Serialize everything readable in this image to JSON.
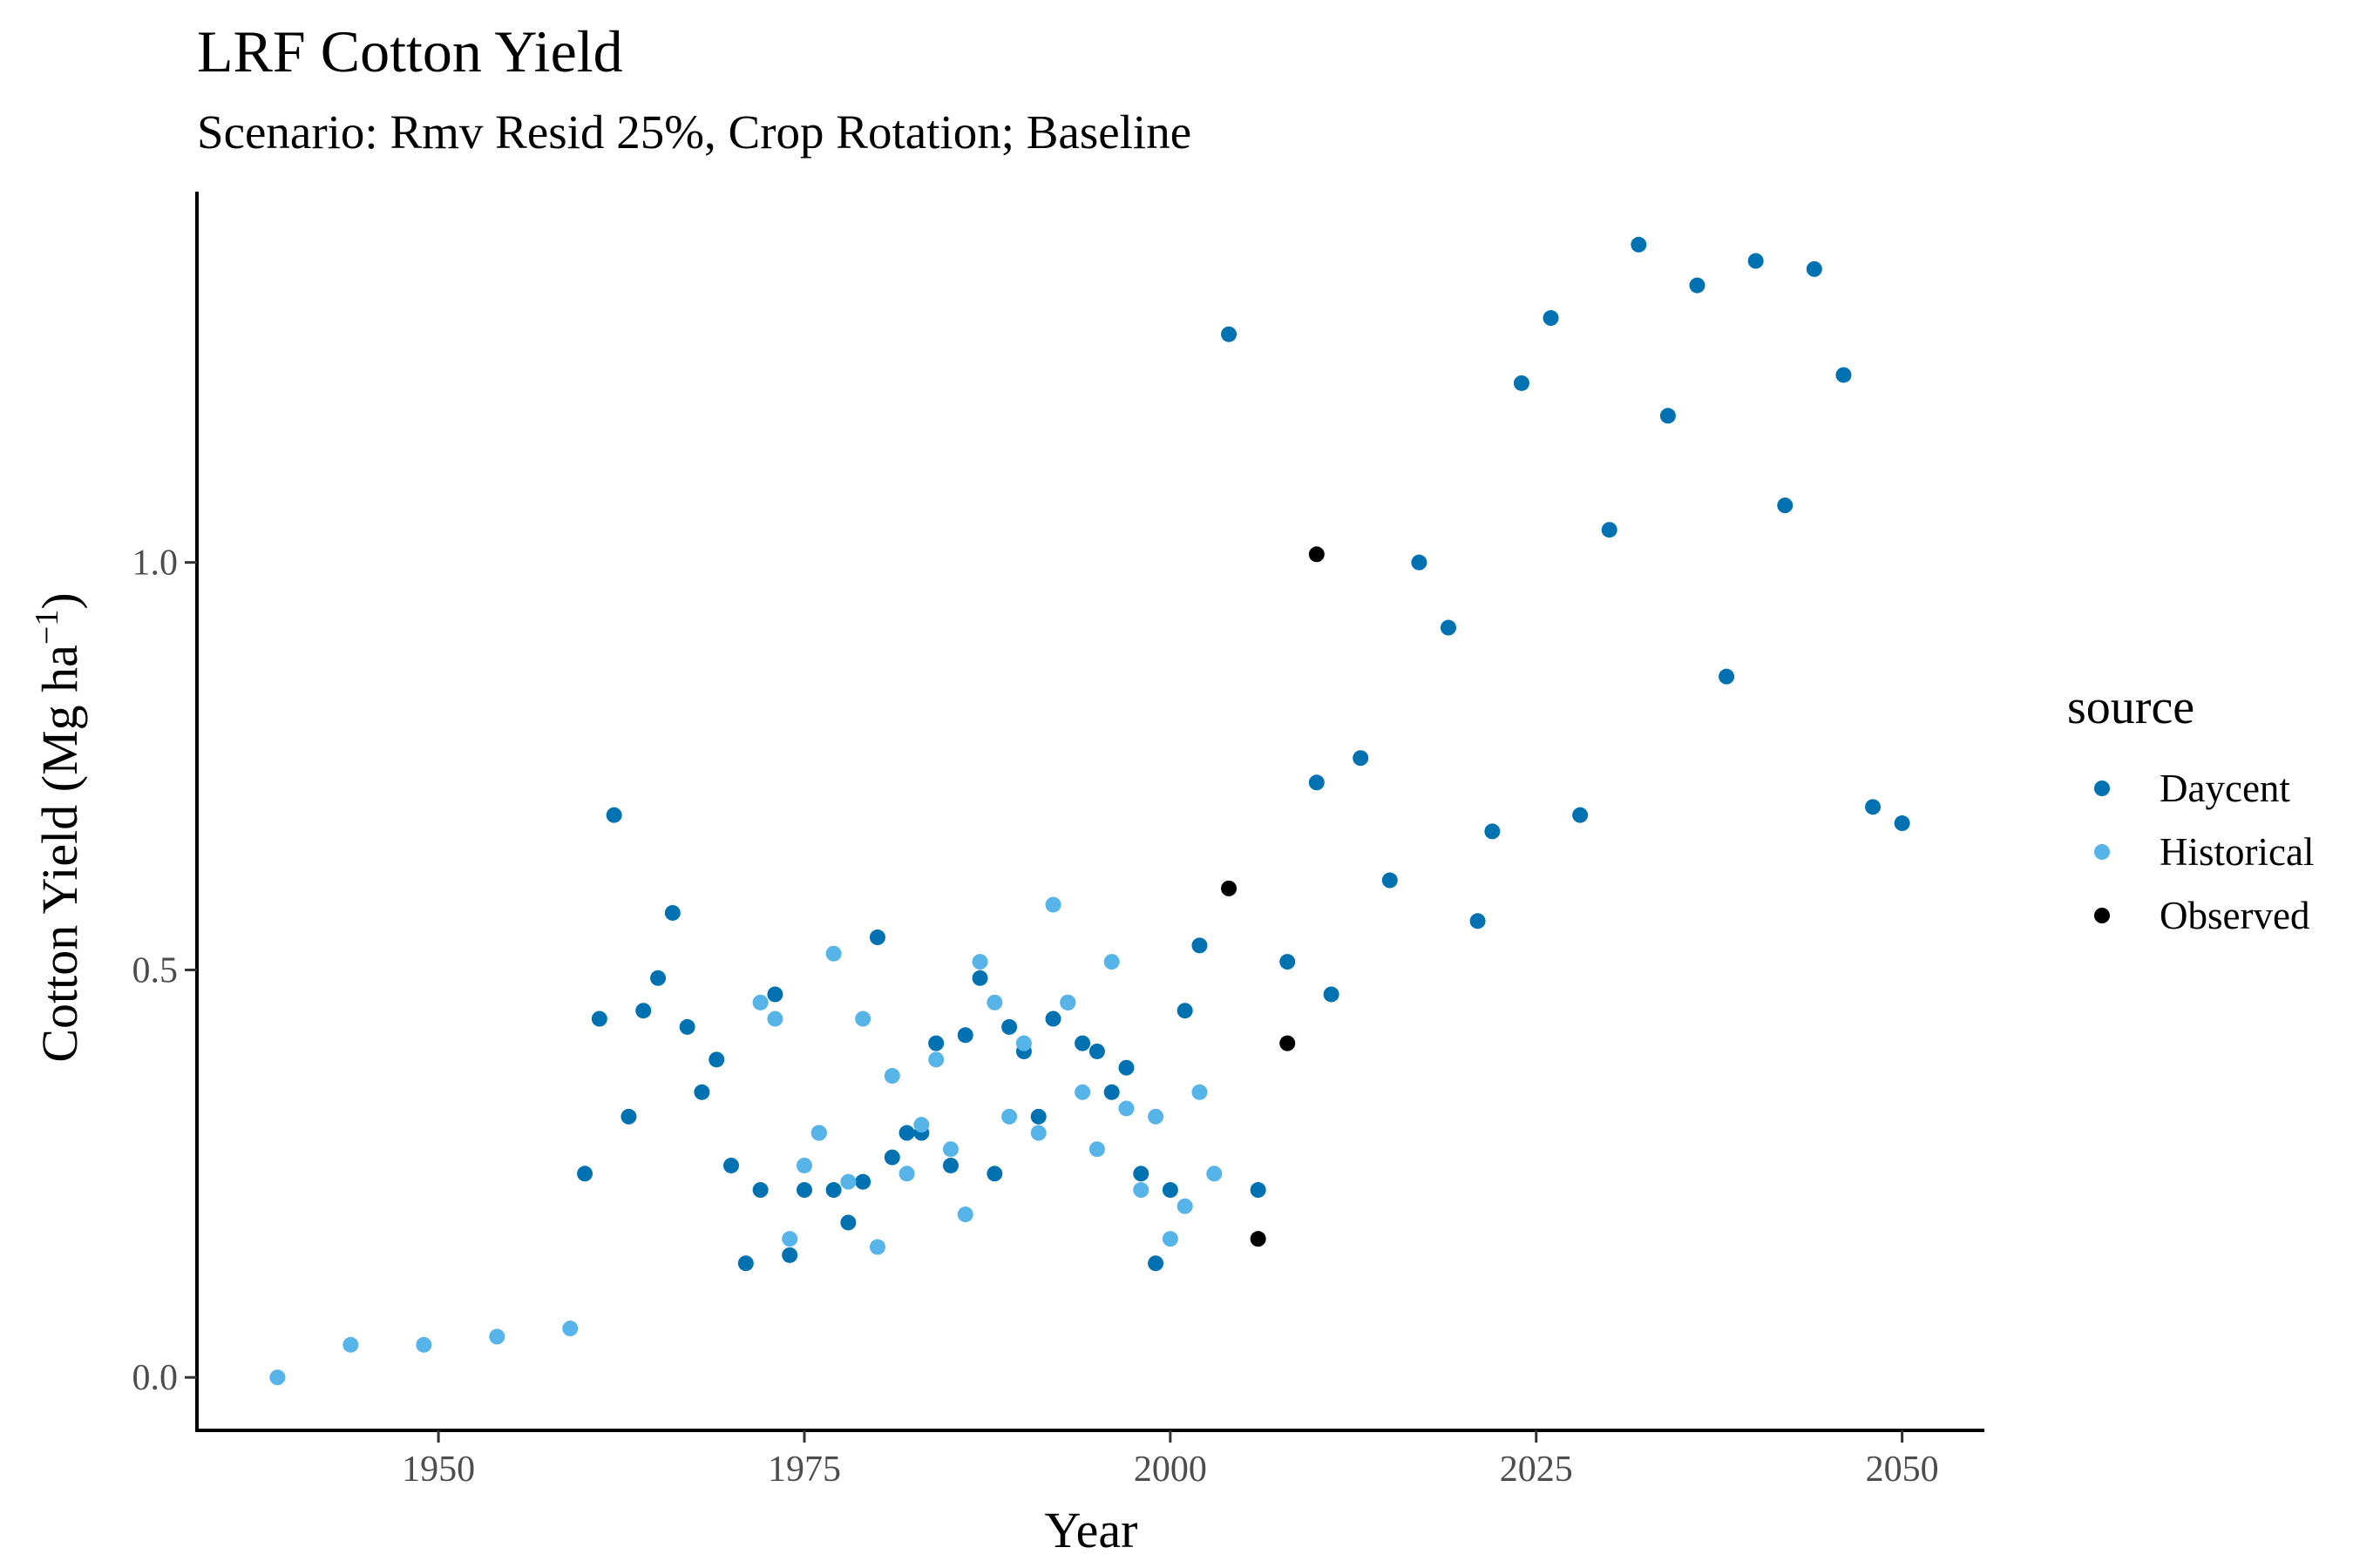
{
  "chart_data": {
    "type": "scatter",
    "title": "LRF Cotton Yield",
    "subtitle": "Scenario: Rmv Resid 25%, Crop Rotation; Baseline",
    "xlabel": "Year",
    "ylabel_main": "Cotton Yield (Mg ha",
    "ylabel_sup": "−1",
    "ylabel_close": ")",
    "xlim": [
      1933.5,
      2055.5
    ],
    "ylim": [
      -0.065,
      1.455
    ],
    "xticks": [
      1950,
      1975,
      2000,
      2025,
      2050
    ],
    "yticks": [
      0.0,
      0.5,
      1.0
    ],
    "ytick_labels": [
      "0.0",
      "0.5",
      "1.0"
    ],
    "grid": false,
    "legend": {
      "title": "source",
      "position": "right"
    },
    "series": [
      {
        "name": "Daycent",
        "color": "#0072B2",
        "points": [
          [
            1960,
            0.25
          ],
          [
            1961,
            0.44
          ],
          [
            1962,
            0.69
          ],
          [
            1963,
            0.32
          ],
          [
            1964,
            0.45
          ],
          [
            1965,
            0.49
          ],
          [
            1966,
            0.57
          ],
          [
            1967,
            0.43
          ],
          [
            1968,
            0.35
          ],
          [
            1969,
            0.39
          ],
          [
            1970,
            0.26
          ],
          [
            1971,
            0.14
          ],
          [
            1972,
            0.23
          ],
          [
            1973,
            0.47
          ],
          [
            1974,
            0.15
          ],
          [
            1975,
            0.23
          ],
          [
            1976,
            0.3
          ],
          [
            1977,
            0.23
          ],
          [
            1978,
            0.19
          ],
          [
            1979,
            0.24
          ],
          [
            1980,
            0.54
          ],
          [
            1981,
            0.27
          ],
          [
            1982,
            0.3
          ],
          [
            1983,
            0.3
          ],
          [
            1984,
            0.41
          ],
          [
            1985,
            0.26
          ],
          [
            1986,
            0.42
          ],
          [
            1987,
            0.49
          ],
          [
            1988,
            0.25
          ],
          [
            1989,
            0.43
          ],
          [
            1990,
            0.4
          ],
          [
            1991,
            0.32
          ],
          [
            1992,
            0.44
          ],
          [
            1993,
            0.46
          ],
          [
            1994,
            0.41
          ],
          [
            1995,
            0.4
          ],
          [
            1996,
            0.35
          ],
          [
            1997,
            0.38
          ],
          [
            1998,
            0.25
          ],
          [
            1999,
            0.14
          ],
          [
            2000,
            0.23
          ],
          [
            2001,
            0.45
          ],
          [
            2002,
            0.53
          ],
          [
            2004,
            1.28
          ],
          [
            2006,
            0.23
          ],
          [
            2008,
            0.51
          ],
          [
            2010,
            0.73
          ],
          [
            2011,
            0.47
          ],
          [
            2013,
            0.76
          ],
          [
            2015,
            0.61
          ],
          [
            2017,
            1.0
          ],
          [
            2019,
            0.92
          ],
          [
            2021,
            0.56
          ],
          [
            2022,
            0.67
          ],
          [
            2024,
            1.22
          ],
          [
            2026,
            1.3
          ],
          [
            2028,
            0.69
          ],
          [
            2030,
            1.04
          ],
          [
            2032,
            1.39
          ],
          [
            2034,
            1.18
          ],
          [
            2036,
            1.34
          ],
          [
            2038,
            0.86
          ],
          [
            2040,
            1.37
          ],
          [
            2042,
            1.07
          ],
          [
            2044,
            1.36
          ],
          [
            2046,
            1.23
          ],
          [
            2048,
            0.7
          ],
          [
            2050,
            0.68
          ]
        ]
      },
      {
        "name": "Historical",
        "color": "#56B4E9",
        "points": [
          [
            1939,
            0.0
          ],
          [
            1944,
            0.04
          ],
          [
            1949,
            0.04
          ],
          [
            1954,
            0.05
          ],
          [
            1959,
            0.06
          ],
          [
            1972,
            0.46
          ],
          [
            1973,
            0.44
          ],
          [
            1974,
            0.17
          ],
          [
            1975,
            0.26
          ],
          [
            1976,
            0.3
          ],
          [
            1977,
            0.52
          ],
          [
            1978,
            0.24
          ],
          [
            1979,
            0.44
          ],
          [
            1980,
            0.16
          ],
          [
            1981,
            0.37
          ],
          [
            1982,
            0.25
          ],
          [
            1983,
            0.31
          ],
          [
            1984,
            0.39
          ],
          [
            1985,
            0.28
          ],
          [
            1986,
            0.2
          ],
          [
            1987,
            0.51
          ],
          [
            1988,
            0.46
          ],
          [
            1989,
            0.32
          ],
          [
            1990,
            0.41
          ],
          [
            1991,
            0.3
          ],
          [
            1992,
            0.58
          ],
          [
            1993,
            0.46
          ],
          [
            1994,
            0.35
          ],
          [
            1995,
            0.28
          ],
          [
            1996,
            0.51
          ],
          [
            1997,
            0.33
          ],
          [
            1998,
            0.23
          ],
          [
            1999,
            0.32
          ],
          [
            2000,
            0.17
          ],
          [
            2001,
            0.21
          ],
          [
            2002,
            0.35
          ],
          [
            2003,
            0.25
          ]
        ]
      },
      {
        "name": "Observed",
        "color": "#000000",
        "points": [
          [
            2004,
            0.6
          ],
          [
            2006,
            0.17
          ],
          [
            2008,
            0.41
          ],
          [
            2010,
            1.01
          ]
        ]
      }
    ]
  }
}
